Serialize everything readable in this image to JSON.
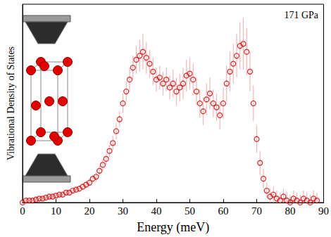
{
  "chart_data": {
    "type": "scatter",
    "annotation": "171 GPa",
    "xlabel": "Energy (meV)",
    "ylabel": "Vibrational Density of States",
    "x": [
      0,
      1,
      2,
      3,
      4,
      5,
      6,
      7,
      8,
      9,
      10,
      11,
      12,
      13,
      14,
      15,
      16,
      17,
      18,
      19,
      20,
      21,
      22,
      23,
      24,
      25,
      26,
      27,
      28,
      29,
      30,
      31,
      32,
      33,
      34,
      35,
      36,
      37,
      38,
      39,
      40,
      41,
      42,
      43,
      44,
      45,
      46,
      47,
      48,
      49,
      50,
      51,
      52,
      53,
      54,
      55,
      56,
      57,
      58,
      59,
      60,
      61,
      62,
      63,
      64,
      65,
      66,
      67,
      68,
      69,
      70,
      71,
      72,
      73,
      74,
      75,
      76,
      77,
      78,
      79,
      80,
      81,
      82,
      83,
      84,
      85,
      86,
      87,
      88
    ],
    "values": [
      0.0,
      0.01,
      0.01,
      0.01,
      0.015,
      0.02,
      0.02,
      0.025,
      0.03,
      0.03,
      0.035,
      0.04,
      0.04,
      0.05,
      0.05,
      0.06,
      0.065,
      0.07,
      0.08,
      0.09,
      0.1,
      0.12,
      0.13,
      0.16,
      0.19,
      0.22,
      0.26,
      0.3,
      0.36,
      0.42,
      0.5,
      0.56,
      0.62,
      0.68,
      0.72,
      0.74,
      0.76,
      0.73,
      0.7,
      0.66,
      0.62,
      0.63,
      0.6,
      0.62,
      0.58,
      0.6,
      0.56,
      0.58,
      0.6,
      0.64,
      0.65,
      0.62,
      0.56,
      0.5,
      0.46,
      0.52,
      0.55,
      0.5,
      0.48,
      0.44,
      0.5,
      0.6,
      0.66,
      0.7,
      0.74,
      0.79,
      0.8,
      0.76,
      0.66,
      0.5,
      0.32,
      0.2,
      0.12,
      0.06,
      0.03,
      0.04,
      0.02,
      0.01,
      0.03,
      0.01,
      0.0,
      0.02,
      0.01,
      0.0,
      0.02,
      0.01,
      0.0,
      0.02,
      0.01
    ],
    "errors": [
      0.01,
      0.01,
      0.01,
      0.01,
      0.01,
      0.01,
      0.01,
      0.01,
      0.01,
      0.01,
      0.01,
      0.01,
      0.01,
      0.01,
      0.01,
      0.01,
      0.015,
      0.015,
      0.015,
      0.02,
      0.02,
      0.02,
      0.025,
      0.025,
      0.03,
      0.03,
      0.03,
      0.035,
      0.04,
      0.04,
      0.05,
      0.05,
      0.06,
      0.06,
      0.07,
      0.08,
      0.09,
      0.08,
      0.07,
      0.07,
      0.06,
      0.06,
      0.06,
      0.06,
      0.06,
      0.07,
      0.07,
      0.07,
      0.08,
      0.08,
      0.08,
      0.08,
      0.07,
      0.07,
      0.07,
      0.08,
      0.08,
      0.07,
      0.07,
      0.07,
      0.08,
      0.09,
      0.1,
      0.1,
      0.11,
      0.12,
      0.13,
      0.12,
      0.1,
      0.09,
      0.07,
      0.06,
      0.05,
      0.04,
      0.04,
      0.04,
      0.04,
      0.04,
      0.04,
      0.04,
      0.04,
      0.04,
      0.04,
      0.04,
      0.04,
      0.04,
      0.04,
      0.04,
      0.04
    ],
    "color": "#d00000",
    "marker": "open_circle",
    "xlim": [
      0,
      90
    ],
    "xticks": [
      0,
      10,
      20,
      30,
      40,
      50,
      60,
      70,
      80,
      90
    ],
    "ylim": [
      0,
      1
    ],
    "tick_labels": "x",
    "grid": false
  }
}
